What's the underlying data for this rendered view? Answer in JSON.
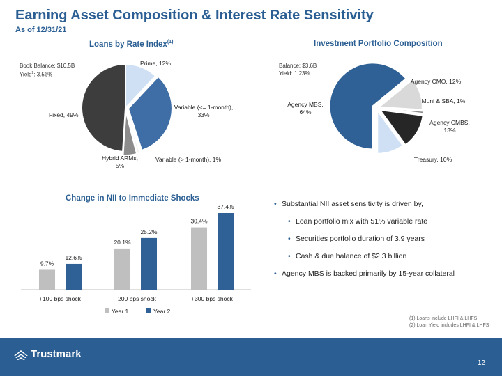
{
  "header": {
    "title": "Earning Asset Composition & Interest Rate Sensitivity",
    "subtitle": "As of 12/31/21"
  },
  "loans_chart": {
    "title": "Loans by Rate Index",
    "title_sup": "(1)",
    "note_line1": "Book Balance: $10.5B",
    "note_line2_pre": "Yield",
    "note_line2_sup": "2",
    "note_line2_post": ": 3.56%"
  },
  "investment_chart": {
    "title": "Investment Portfolio Composition",
    "note_line1": "Balance: $3.6B",
    "note_line2": "Yield: 1.23%"
  },
  "nii_chart": {
    "title": "Change in NII to Immediate Shocks"
  },
  "chart_data": [
    {
      "type": "pie",
      "title": "Loans by Rate Index(1)",
      "labels": [
        "Prime, 12%",
        "Variable (<= 1-month), 33%",
        "Variable (> 1-month), 1%",
        "Hybrid ARMs, 5%",
        "Fixed, 49%"
      ],
      "values": [
        12,
        33,
        1,
        5,
        49
      ],
      "colors": [
        "#cfe0f5",
        "#3f6ea6",
        "#f2f2f2",
        "#8c8c8c",
        "#3d3d3d"
      ],
      "label_lines": [
        [
          "Prime, 12%"
        ],
        [
          "Variable (<= 1-month),",
          "33%"
        ],
        [
          "Variable (> 1-month), 1%"
        ],
        [
          "Hybrid ARMs,",
          "5%"
        ],
        [
          "Fixed, 49%"
        ]
      ]
    },
    {
      "type": "pie",
      "title": "Investment Portfolio Composition",
      "labels": [
        "Agency MBS, 64%",
        "Agency CMO, 12%",
        "Muni & SBA, 1%",
        "Agency CMBS, 13%",
        "Treasury, 10%"
      ],
      "values": [
        64,
        12,
        1,
        13,
        10
      ],
      "colors": [
        "#2f6196",
        "#d9d9d9",
        "#8c8c8c",
        "#262626",
        "#cfe0f5"
      ],
      "label_lines": [
        [
          "Agency MBS,",
          "64%"
        ],
        [
          "Agency CMO, 12%"
        ],
        [
          "Muni & SBA, 1%"
        ],
        [
          "Agency CMBS,",
          "13%"
        ],
        [
          "Treasury, 10%"
        ]
      ]
    },
    {
      "type": "bar",
      "title": "Change in NII to Immediate Shocks",
      "categories": [
        "+100 bps shock",
        "+200 bps shock",
        "+300 bps shock"
      ],
      "series": [
        {
          "name": "Year 1",
          "values": [
            9.7,
            20.1,
            30.4
          ],
          "labels": [
            "9.7%",
            "20.1%",
            "30.4%"
          ],
          "color": "#bfbfbf"
        },
        {
          "name": "Year 2",
          "values": [
            12.6,
            25.2,
            37.4
          ],
          "labels": [
            "12.6%",
            "25.2%",
            "37.4%"
          ],
          "color": "#2f6196"
        }
      ],
      "ylim": [
        0,
        37.4
      ],
      "legend": "bottom"
    }
  ],
  "bullets": {
    "main1": "Substantial NII asset sensitivity is driven by,",
    "sub1": "Loan portfolio mix with 51% variable rate",
    "sub2": "Securities portfolio duration of 3.9 years",
    "sub3": "Cash & due balance of $2.3 billion",
    "main2": "Agency MBS is backed primarily by 15-year collateral"
  },
  "footnotes": {
    "f1": "(1) Loans include LHFI & LHFS",
    "f2": "(2) Loan Yield includes LHFI & LHFS"
  },
  "footer": {
    "brand": "Trustmark",
    "page_number": "12"
  }
}
